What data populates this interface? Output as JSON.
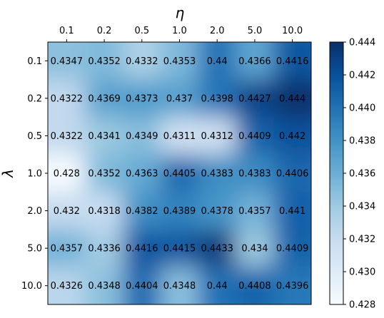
{
  "chart_data": {
    "type": "heatmap",
    "xlabel": "η",
    "ylabel": "λ",
    "x_ticks": [
      "0.1",
      "0.2",
      "0.5",
      "1.0",
      "2.0",
      "5.0",
      "10.0"
    ],
    "y_ticks": [
      "0.1",
      "0.2",
      "0.5",
      "1.0",
      "2.0",
      "5.0",
      "10.0"
    ],
    "x_axis_position": "top",
    "colormap": "Blues",
    "colors": {
      "low": "#f7fbff",
      "mid": "#6baed6",
      "high": "#08306b"
    },
    "values": [
      [
        0.4347,
        0.4352,
        0.4332,
        0.4353,
        0.44,
        0.4366,
        0.4416
      ],
      [
        0.4322,
        0.4369,
        0.4373,
        0.437,
        0.4398,
        0.4427,
        0.444
      ],
      [
        0.4322,
        0.4341,
        0.4349,
        0.4311,
        0.4312,
        0.4409,
        0.442
      ],
      [
        0.428,
        0.4352,
        0.4363,
        0.4405,
        0.4383,
        0.4383,
        0.4406
      ],
      [
        0.432,
        0.4318,
        0.4382,
        0.4389,
        0.4378,
        0.4357,
        0.441
      ],
      [
        0.4357,
        0.4336,
        0.4416,
        0.4415,
        0.4433,
        0.434,
        0.4409
      ],
      [
        0.4326,
        0.4348,
        0.4404,
        0.4348,
        0.44,
        0.4408,
        0.4396
      ]
    ],
    "cell_labels": [
      [
        "0.4347",
        "0.4352",
        "0.4332",
        "0.4353",
        "0.44",
        "0.4366",
        "0.4416"
      ],
      [
        "0.4322",
        "0.4369",
        "0.4373",
        "0.437",
        "0.4398",
        "0.4427",
        "0.444"
      ],
      [
        "0.4322",
        "0.4341",
        "0.4349",
        "0.4311",
        "0.4312",
        "0.4409",
        "0.442"
      ],
      [
        "0.428",
        "0.4352",
        "0.4363",
        "0.4405",
        "0.4383",
        "0.4383",
        "0.4406"
      ],
      [
        "0.432",
        "0.4318",
        "0.4382",
        "0.4389",
        "0.4378",
        "0.4357",
        "0.441"
      ],
      [
        "0.4357",
        "0.4336",
        "0.4416",
        "0.4415",
        "0.4433",
        "0.434",
        "0.4409"
      ],
      [
        "0.4326",
        "0.4348",
        "0.4404",
        "0.4348",
        "0.44",
        "0.4408",
        "0.4396"
      ]
    ],
    "colorbar": {
      "range": [
        0.428,
        0.444
      ],
      "ticks": [
        "0.428",
        "0.430",
        "0.432",
        "0.434",
        "0.436",
        "0.438",
        "0.440",
        "0.442",
        "0.444"
      ]
    },
    "grid": false
  }
}
